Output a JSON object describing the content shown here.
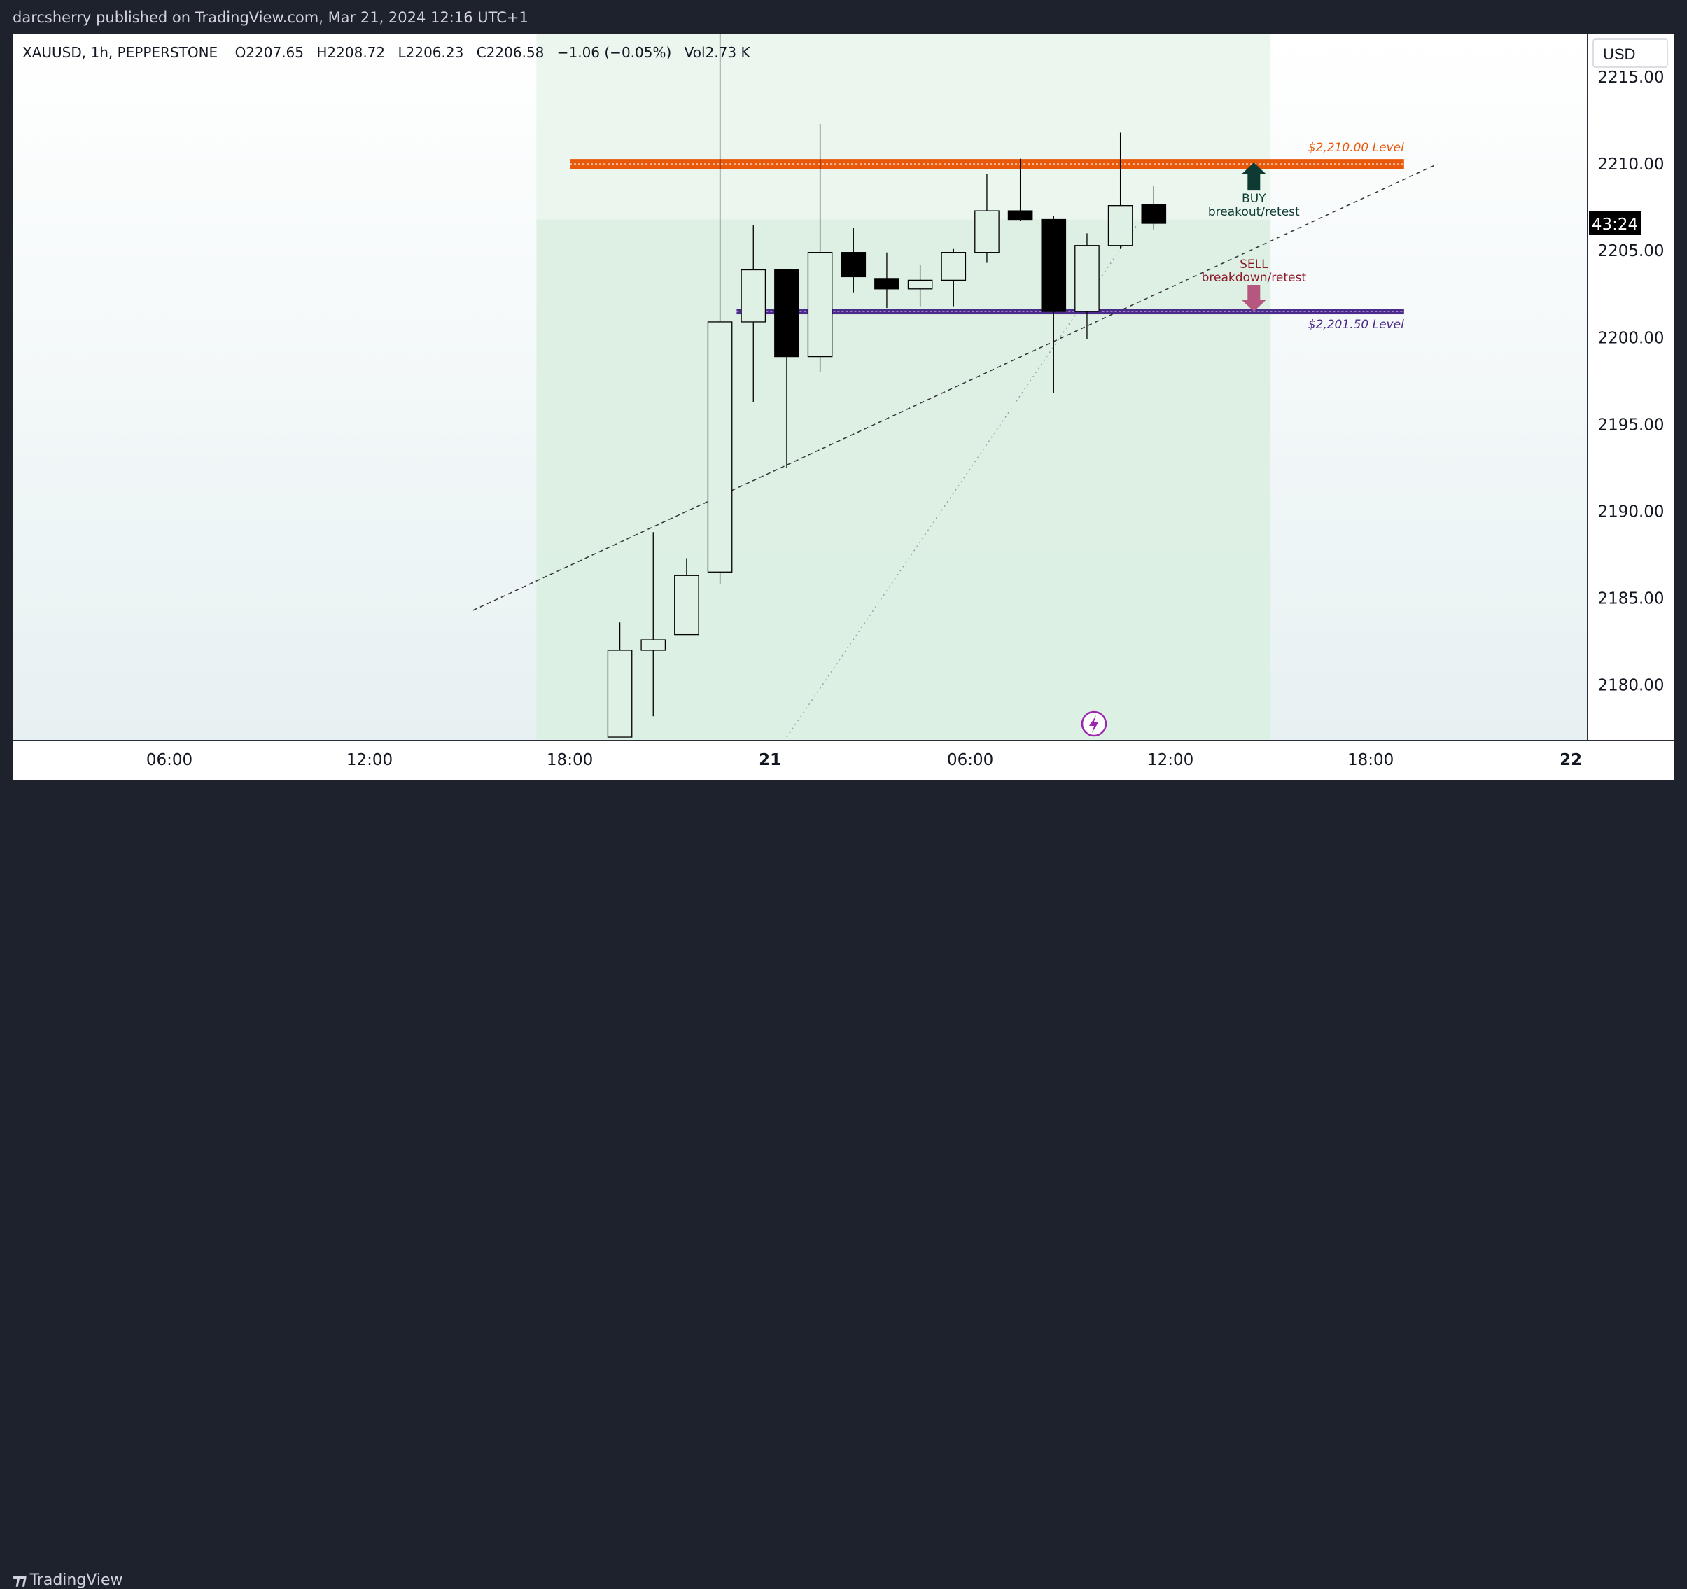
{
  "publisher_line": "darcsherry published on TradingView.com, Mar 21, 2024 12:16 UTC+1",
  "legend": {
    "symbol": "XAUUSD, 1h, PEPPERSTONE",
    "open": "O2207.65",
    "high": "H2208.72",
    "low": "L2206.23",
    "close": "C2206.58",
    "change": "−1.06 (−0.05%)",
    "volume": "Vol2.73 K"
  },
  "currency": "USD",
  "countdown": "43:24",
  "brand": "TradingView",
  "colors": {
    "resistance": "#e8590c",
    "support": "#4a2a8a",
    "buy_arrow": "#0d3b33",
    "sell_arrow": "#b5577e",
    "bull_fill": "#dff0e4",
    "bear_fill": "#000000",
    "zone_light": "#eaf5ee",
    "zone_dark": "#dcefe3",
    "lightning": "#9c27b0"
  },
  "chart_data": {
    "type": "candlestick",
    "x_ticks": [
      {
        "label": "06:00",
        "t": -18
      },
      {
        "label": "12:00",
        "t": -12
      },
      {
        "label": "18:00",
        "t": -6
      },
      {
        "label": "21",
        "t": 0,
        "bold": true
      },
      {
        "label": "06:00",
        "t": 6
      },
      {
        "label": "12:00",
        "t": 12
      },
      {
        "label": "18:00",
        "t": 18
      },
      {
        "label": "22",
        "t": 24,
        "bold": true
      }
    ],
    "y_ticks": [
      2180,
      2185,
      2190,
      2195,
      2200,
      2205,
      2210,
      2215
    ],
    "ylim": [
      2176.8,
      2217.5
    ],
    "xlim": [
      -22.7,
      24.5
    ],
    "candles": [
      {
        "t": -4.5,
        "o": 2177.0,
        "h": 2183.6,
        "l": 2177.0,
        "c": 2182.0
      },
      {
        "t": -3.5,
        "o": 2182.0,
        "h": 2188.8,
        "l": 2178.2,
        "c": 2182.6
      },
      {
        "t": -2.5,
        "o": 2182.9,
        "h": 2187.3,
        "l": 2182.9,
        "c": 2186.3
      },
      {
        "t": -1.5,
        "o": 2186.5,
        "h": 2223.0,
        "l": 2185.8,
        "c": 2200.9
      },
      {
        "t": -0.5,
        "o": 2200.9,
        "h": 2206.5,
        "l": 2196.3,
        "c": 2203.9
      },
      {
        "t": 0.5,
        "o": 2203.9,
        "h": 2203.9,
        "l": 2192.5,
        "c": 2198.9
      },
      {
        "t": 1.5,
        "o": 2198.9,
        "h": 2212.3,
        "l": 2198.0,
        "c": 2204.9
      },
      {
        "t": 2.5,
        "o": 2204.9,
        "h": 2206.3,
        "l": 2202.6,
        "c": 2203.5
      },
      {
        "t": 3.5,
        "o": 2203.4,
        "h": 2204.9,
        "l": 2201.7,
        "c": 2202.8
      },
      {
        "t": 4.5,
        "o": 2202.8,
        "h": 2204.2,
        "l": 2201.8,
        "c": 2203.3
      },
      {
        "t": 5.5,
        "o": 2203.3,
        "h": 2205.1,
        "l": 2201.8,
        "c": 2204.9
      },
      {
        "t": 6.5,
        "o": 2204.9,
        "h": 2209.4,
        "l": 2204.3,
        "c": 2207.3
      },
      {
        "t": 7.5,
        "o": 2207.3,
        "h": 2210.3,
        "l": 2206.7,
        "c": 2206.8
      },
      {
        "t": 8.5,
        "o": 2206.8,
        "h": 2207.0,
        "l": 2196.8,
        "c": 2201.5
      },
      {
        "t": 9.5,
        "o": 2201.5,
        "h": 2206.0,
        "l": 2199.9,
        "c": 2205.3
      },
      {
        "t": 10.5,
        "o": 2205.3,
        "h": 2211.8,
        "l": 2205.1,
        "c": 2207.6
      },
      {
        "t": 11.5,
        "o": 2207.65,
        "h": 2208.72,
        "l": 2206.23,
        "c": 2206.58
      }
    ],
    "annotations": {
      "resistance": {
        "price": 2210.0,
        "t_start": -6.0,
        "t_end": 19.0,
        "label": "$2,210.00 Level"
      },
      "support": {
        "price": 2201.5,
        "t_start": -1.0,
        "t_end": 19.0,
        "label": "$2,201.50 Level"
      },
      "buy": {
        "line1": "BUY",
        "line2": "breakout/retest",
        "t": 14.5
      },
      "sell": {
        "line1": "SELL",
        "line2": "breakdown/retest",
        "t": 14.5
      },
      "trendline_dashed": {
        "t1": -8.9,
        "p1": 2184.3,
        "t2": 20.0,
        "p2": 2210.0
      },
      "trendline_dotted": {
        "t1": 0.5,
        "p1": 2177.0,
        "t2": 11.0,
        "p2": 2206.5
      },
      "zone": {
        "t_start": -7.0,
        "t_end": 15.0,
        "p_split": 2206.8
      }
    }
  }
}
